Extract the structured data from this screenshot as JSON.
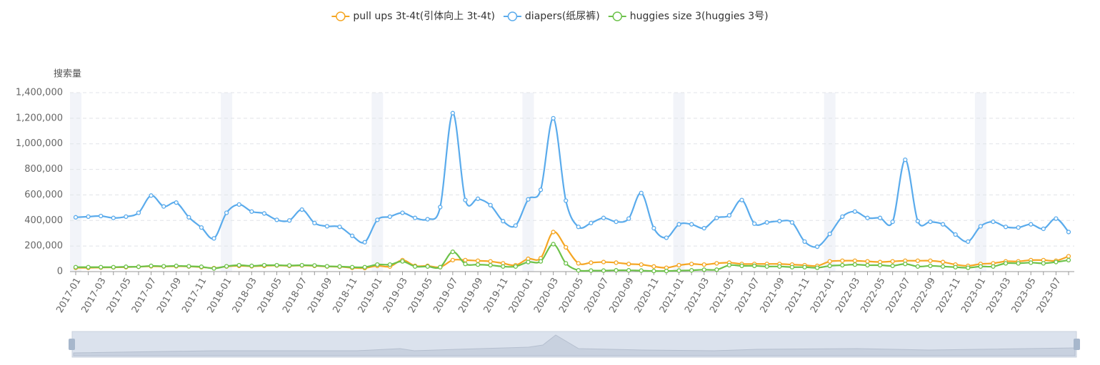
{
  "chart_data": {
    "type": "line",
    "y_axis_label": "搜索量",
    "categories": [
      "2017-01",
      null,
      "2017-03",
      null,
      "2017-05",
      null,
      "2017-07",
      null,
      "2017-09",
      null,
      "2017-11",
      null,
      "2018-01",
      null,
      "2018-03",
      null,
      "2018-05",
      null,
      "2018-07",
      null,
      "2018-09",
      null,
      "2018-11",
      null,
      "2019-01",
      null,
      "2019-03",
      null,
      "2019-05",
      null,
      "2019-07",
      null,
      "2019-09",
      null,
      "2019-11",
      null,
      "2020-01",
      null,
      "2020-03",
      null,
      "2020-05",
      null,
      "2020-07",
      null,
      "2020-09",
      null,
      "2020-11",
      null,
      "2021-01",
      null,
      "2021-03",
      null,
      "2021-05",
      null,
      "2021-07",
      null,
      "2021-09",
      null,
      "2021-11",
      null,
      "2022-01",
      null,
      "2022-03",
      null,
      "2022-05",
      null,
      "2022-07",
      null,
      "2022-09",
      null,
      "2022-11",
      null,
      "2023-01",
      null,
      "2023-03",
      null,
      "2023-05",
      null,
      "2023-07",
      null
    ],
    "series": [
      {
        "name": "pull ups 3t-4t(引体向上 3t-4t)",
        "color": "#f5a623",
        "values": [
          30000,
          30000,
          32000,
          33000,
          35000,
          38000,
          42000,
          40000,
          42000,
          40000,
          35000,
          28000,
          40000,
          45000,
          42000,
          45000,
          48000,
          45000,
          48000,
          45000,
          40000,
          38000,
          30000,
          28000,
          45000,
          40000,
          90000,
          45000,
          45000,
          35000,
          90000,
          90000,
          85000,
          80000,
          65000,
          50000,
          100000,
          105000,
          310000,
          190000,
          65000,
          70000,
          75000,
          70000,
          60000,
          55000,
          40000,
          30000,
          50000,
          60000,
          55000,
          65000,
          70000,
          60000,
          60000,
          60000,
          60000,
          55000,
          50000,
          45000,
          80000,
          85000,
          85000,
          80000,
          75000,
          80000,
          85000,
          85000,
          85000,
          75000,
          55000,
          45000,
          60000,
          65000,
          80000,
          80000,
          90000,
          90000,
          85000,
          120000
        ]
      },
      {
        "name": "diapers(纸尿裤)",
        "color": "#5aabec",
        "values": [
          425000,
          430000,
          435000,
          420000,
          430000,
          460000,
          595000,
          510000,
          540000,
          425000,
          345000,
          260000,
          460000,
          525000,
          470000,
          455000,
          405000,
          400000,
          485000,
          380000,
          355000,
          350000,
          280000,
          230000,
          405000,
          430000,
          460000,
          420000,
          410000,
          505000,
          1240000,
          560000,
          570000,
          520000,
          395000,
          360000,
          565000,
          640000,
          1200000,
          555000,
          350000,
          380000,
          420000,
          390000,
          415000,
          615000,
          340000,
          265000,
          370000,
          370000,
          340000,
          420000,
          440000,
          560000,
          375000,
          385000,
          395000,
          385000,
          235000,
          195000,
          295000,
          430000,
          470000,
          420000,
          420000,
          390000,
          875000,
          395000,
          390000,
          370000,
          290000,
          235000,
          355000,
          390000,
          350000,
          345000,
          370000,
          335000,
          415000,
          310000
        ]
      },
      {
        "name": "huggies size 3(huggies 3号)",
        "color": "#6cc24a",
        "values": [
          35000,
          35000,
          35000,
          35000,
          38000,
          38000,
          45000,
          42000,
          45000,
          42000,
          38000,
          25000,
          42000,
          50000,
          45000,
          50000,
          50000,
          48000,
          50000,
          48000,
          42000,
          40000,
          35000,
          35000,
          55000,
          55000,
          80000,
          40000,
          40000,
          35000,
          155000,
          60000,
          55000,
          50000,
          40000,
          40000,
          75000,
          80000,
          215000,
          65000,
          10000,
          8000,
          8000,
          10000,
          10000,
          8000,
          5000,
          5000,
          8000,
          10000,
          15000,
          15000,
          50000,
          45000,
          45000,
          40000,
          40000,
          35000,
          35000,
          30000,
          45000,
          50000,
          55000,
          50000,
          50000,
          45000,
          60000,
          40000,
          45000,
          40000,
          35000,
          30000,
          40000,
          40000,
          65000,
          65000,
          70000,
          65000,
          75000,
          90000
        ]
      }
    ],
    "ylim": [
      0,
      1400000
    ],
    "yticks": [
      0,
      {
        "value": 200000,
        "label": "200,000"
      },
      {
        "value": 400000,
        "label": "400,000"
      },
      {
        "value": 600000,
        "label": "600,000"
      },
      {
        "value": 800000,
        "label": "800,000"
      },
      {
        "value": 1000000,
        "label": "1,000,000"
      },
      {
        "value": 1200000,
        "label": "1,200,000"
      },
      {
        "value": 1400000,
        "label": "1,400,000"
      }
    ],
    "grid": true,
    "legend": "top",
    "smooth": true
  }
}
